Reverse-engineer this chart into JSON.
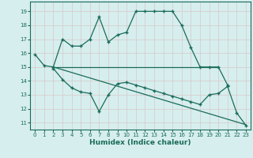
{
  "line1_x": [
    0,
    1,
    2,
    3,
    4,
    5,
    6,
    7,
    8,
    9,
    10,
    11,
    12,
    13,
    14,
    15,
    16,
    17,
    18,
    19,
    20,
    21
  ],
  "line1_y": [
    15.9,
    15.1,
    15.0,
    17.0,
    16.5,
    16.5,
    17.0,
    18.6,
    16.8,
    17.3,
    17.5,
    19.0,
    19.0,
    19.0,
    19.0,
    19.0,
    18.0,
    16.4,
    15.0,
    15.0,
    15.0,
    13.7
  ],
  "line2_x": [
    2,
    20
  ],
  "line2_y": [
    15.0,
    15.0
  ],
  "line3_x": [
    2,
    3,
    4,
    5,
    6,
    7,
    8,
    9,
    10,
    11,
    12,
    13,
    14,
    15,
    16,
    17,
    18,
    19,
    20,
    21,
    22,
    23
  ],
  "line3_y": [
    14.9,
    14.1,
    13.5,
    13.2,
    13.1,
    11.8,
    13.0,
    13.8,
    13.9,
    13.7,
    13.5,
    13.3,
    13.1,
    12.9,
    12.7,
    12.5,
    12.3,
    13.0,
    13.1,
    13.6,
    11.7,
    10.8
  ],
  "line4_x": [
    2,
    23
  ],
  "line4_y": [
    15.0,
    10.85
  ],
  "line_color": "#1a6b5a",
  "bg_color": "#d6eeee",
  "grid_color": "#c8e0e0",
  "xlabel": "Humidex (Indice chaleur)",
  "yticks": [
    11,
    12,
    13,
    14,
    15,
    16,
    17,
    18,
    19
  ],
  "xtick_labels": [
    "0",
    "1",
    "2",
    "3",
    "4",
    "5",
    "6",
    "7",
    "8",
    "9",
    "10",
    "11",
    "12",
    "13",
    "14",
    "15",
    "16",
    "17",
    "18",
    "19",
    "20",
    "21",
    "22",
    "23"
  ],
  "xtick_vals": [
    0,
    1,
    2,
    3,
    4,
    5,
    6,
    7,
    8,
    9,
    10,
    11,
    12,
    13,
    14,
    15,
    16,
    17,
    18,
    19,
    20,
    21,
    22,
    23
  ],
  "ylim": [
    10.5,
    19.7
  ],
  "xlim": [
    -0.5,
    23.5
  ]
}
